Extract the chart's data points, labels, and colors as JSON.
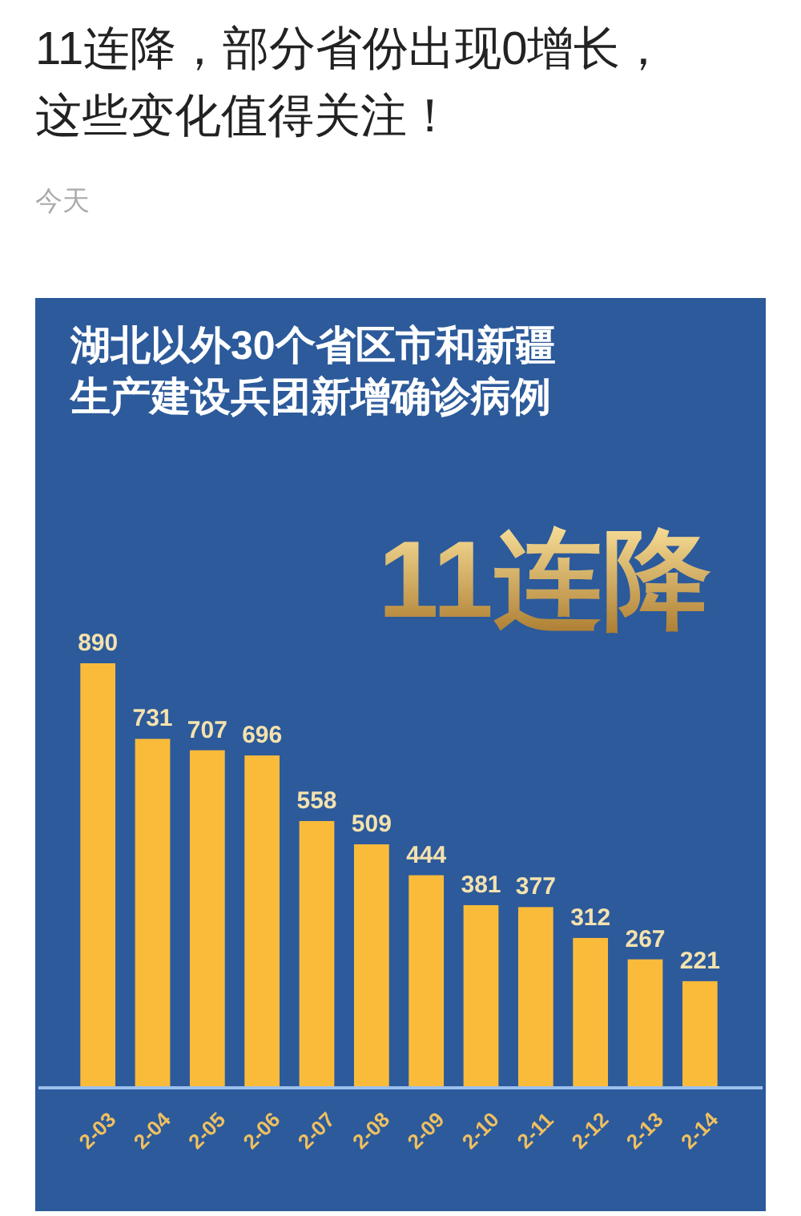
{
  "chart_data": {
    "type": "bar",
    "title": "11连降，部分省份出现0增长，这些变化值得关注！",
    "subtitle": "湖北以外30个省区市和新疆生产建设兵团新增确诊病例",
    "annotations": [
      "今天",
      "11连降"
    ],
    "categories": [
      "2-03",
      "2-04",
      "2-05",
      "2-06",
      "2-07",
      "2-08",
      "2-09",
      "2-10",
      "2-11",
      "2-12",
      "2-13",
      "2-14"
    ],
    "values": [
      890,
      731,
      707,
      696,
      558,
      509,
      444,
      381,
      377,
      312,
      267,
      221
    ],
    "color": "#fbbb3a",
    "data_labels": true
  }
}
